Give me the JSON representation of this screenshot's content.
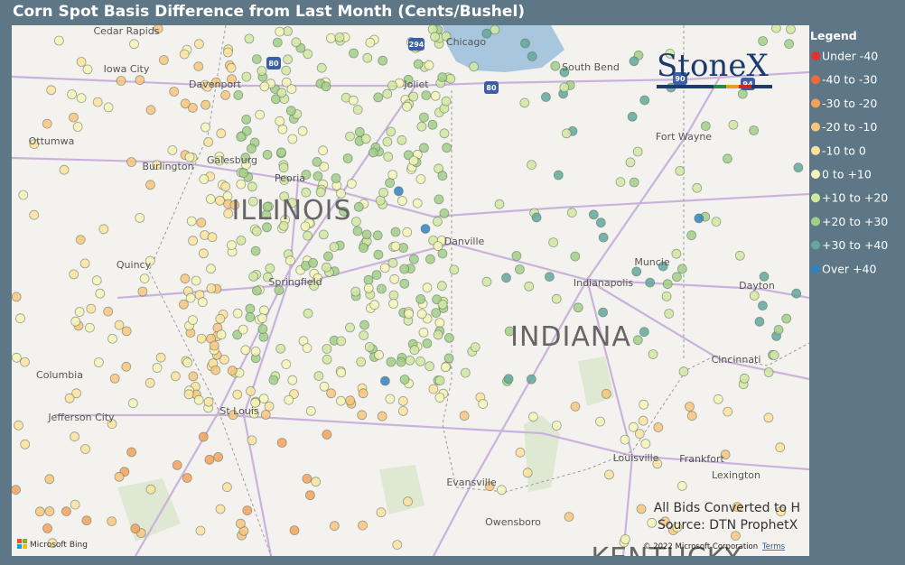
{
  "title": "Corn Spot Basis Difference from Last Month (Cents/Bushel)",
  "legend": {
    "title": "Legend",
    "items": [
      {
        "label": "Under -40",
        "color": "#e0322f"
      },
      {
        "label": "-40 to -30",
        "color": "#ec6a3c"
      },
      {
        "label": "-30 to -20",
        "color": "#f4a25a"
      },
      {
        "label": "-20 to -10",
        "color": "#f8c57c"
      },
      {
        "label": "-10 to 0",
        "color": "#fbe39d"
      },
      {
        "label": "0 to +10",
        "color": "#f6f4b8"
      },
      {
        "label": "+10 to +20",
        "color": "#d2e8a2"
      },
      {
        "label": "+20 to +30",
        "color": "#a2cf88"
      },
      {
        "label": "+30 to +40",
        "color": "#62a89c"
      },
      {
        "label": "Over +40",
        "color": "#3380bf"
      }
    ]
  },
  "map": {
    "cities": [
      "Cedar Rapids",
      "Iowa City",
      "Davenport",
      "Chicago",
      "Joliet",
      "South Bend",
      "Ottumwa",
      "Burlington",
      "Galesburg",
      "Peoria",
      "Fort Wayne",
      "Muncie",
      "Danville",
      "Quincy",
      "Springfield",
      "Indianapolis",
      "Dayton",
      "Cincinnati",
      "Columbia",
      "Jefferson City",
      "St Louis",
      "Louisville",
      "Frankfort",
      "Lexington",
      "Evansville",
      "Owensboro"
    ],
    "states": [
      "ILLINOIS",
      "INDIANA",
      "KENTUCKY"
    ],
    "highways": [
      "294",
      "80",
      "80",
      "90",
      "94"
    ]
  },
  "logo": "StoneX",
  "notes": [
    "All Bids Converted to H",
    "Source: DTN ProphetX"
  ],
  "attribution": {
    "bing": "Microsoft Bing",
    "copyright": "© 2022 Microsoft Corporation",
    "terms": "Terms"
  }
}
